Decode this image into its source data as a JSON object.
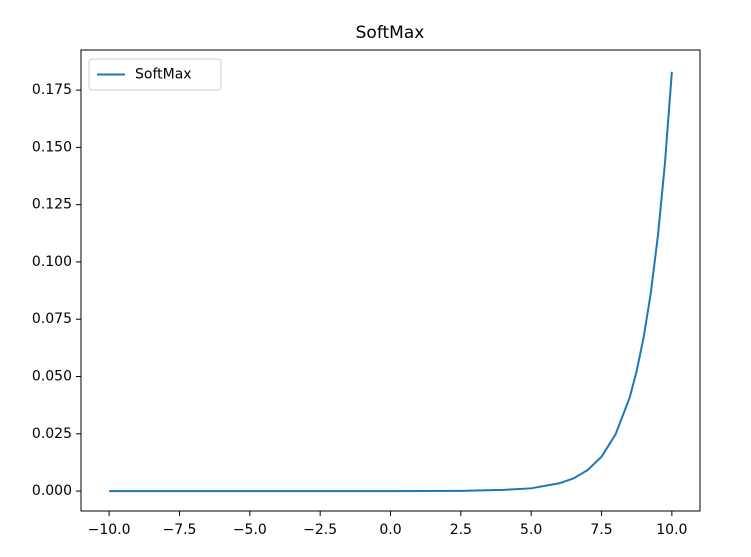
{
  "chart_data": {
    "type": "line",
    "title": "SoftMax",
    "x": [
      -10,
      -5,
      0,
      2.5,
      4,
      5,
      6,
      6.5,
      7,
      7.5,
      8,
      8.5,
      8.75,
      9,
      9.25,
      9.5,
      9.75,
      10
    ],
    "series": [
      {
        "name": "SoftMax",
        "color": "#1f77b4",
        "values": [
          0,
          0,
          0,
          0.0001,
          0.0005,
          0.0012,
          0.0034,
          0.0055,
          0.0091,
          0.015,
          0.0248,
          0.0408,
          0.0524,
          0.0673,
          0.0864,
          0.111,
          0.1425,
          0.183
        ]
      }
    ],
    "xlim": [
      -11,
      11
    ],
    "ylim": [
      -0.0087,
      0.1925
    ],
    "xticks": [
      {
        "value": -10,
        "label": "−10.0"
      },
      {
        "value": -7.5,
        "label": "−7.5"
      },
      {
        "value": -5,
        "label": "−5.0"
      },
      {
        "value": -2.5,
        "label": "−2.5"
      },
      {
        "value": 0,
        "label": "0.0"
      },
      2.5,
      {
        "value": 5,
        "label": "5.0"
      },
      7.5,
      {
        "value": 10,
        "label": "10.0"
      }
    ],
    "yticks": [
      {
        "value": 0,
        "label": "0.000"
      },
      {
        "value": 0.025,
        "label": "0.025"
      },
      {
        "value": 0.05,
        "label": "0.050"
      },
      {
        "value": 0.075,
        "label": "0.075"
      },
      {
        "value": 0.1,
        "label": "0.100"
      },
      {
        "value": 0.125,
        "label": "0.125"
      },
      {
        "value": 0.15,
        "label": "0.150"
      },
      {
        "value": 0.175,
        "label": "0.175"
      }
    ],
    "grid": false,
    "legend": "upper-left"
  }
}
